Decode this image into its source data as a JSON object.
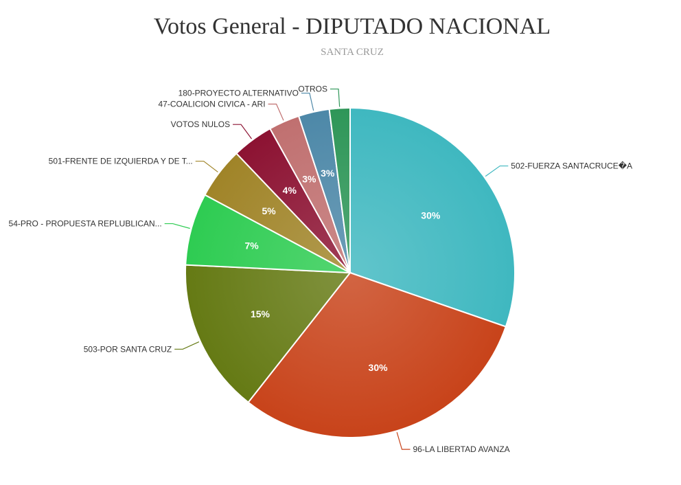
{
  "chart_data": {
    "type": "pie",
    "title": "Votos General - DIPUTADO NACIONAL",
    "subtitle": "SANTA CRUZ",
    "slices": [
      {
        "name": "502-FUERZA SANTACRUCE�A",
        "value": 30,
        "pct_label": "30%",
        "color": "#3fb8c0"
      },
      {
        "name": "96-LA LIBERTAD AVANZA",
        "value": 30,
        "pct_label": "30%",
        "color": "#c8431a"
      },
      {
        "name": "503-POR SANTA CRUZ",
        "value": 15,
        "pct_label": "15%",
        "color": "#657a14"
      },
      {
        "name": "54-PRO - PROPUESTA REPLUBLICAN...",
        "value": 7,
        "pct_label": "7%",
        "color": "#2ecc52"
      },
      {
        "name": "501-FRENTE DE IZQUIERDA Y DE T...",
        "value": 5,
        "pct_label": "5%",
        "color": "#a08428"
      },
      {
        "name": "VOTOS NULOS",
        "value": 4,
        "pct_label": "4%",
        "color": "#8c1232"
      },
      {
        "name": "47-COALICION CIVICA - ARI",
        "value": 3,
        "pct_label": "3%",
        "color": "#c07070"
      },
      {
        "name": "180-PROYECTO ALTERNATIVO",
        "value": 3,
        "pct_label": "3%",
        "color": "#4d88a8"
      },
      {
        "name": "OTROS",
        "value": 2,
        "pct_label": "",
        "color": "#2e9658"
      }
    ]
  }
}
